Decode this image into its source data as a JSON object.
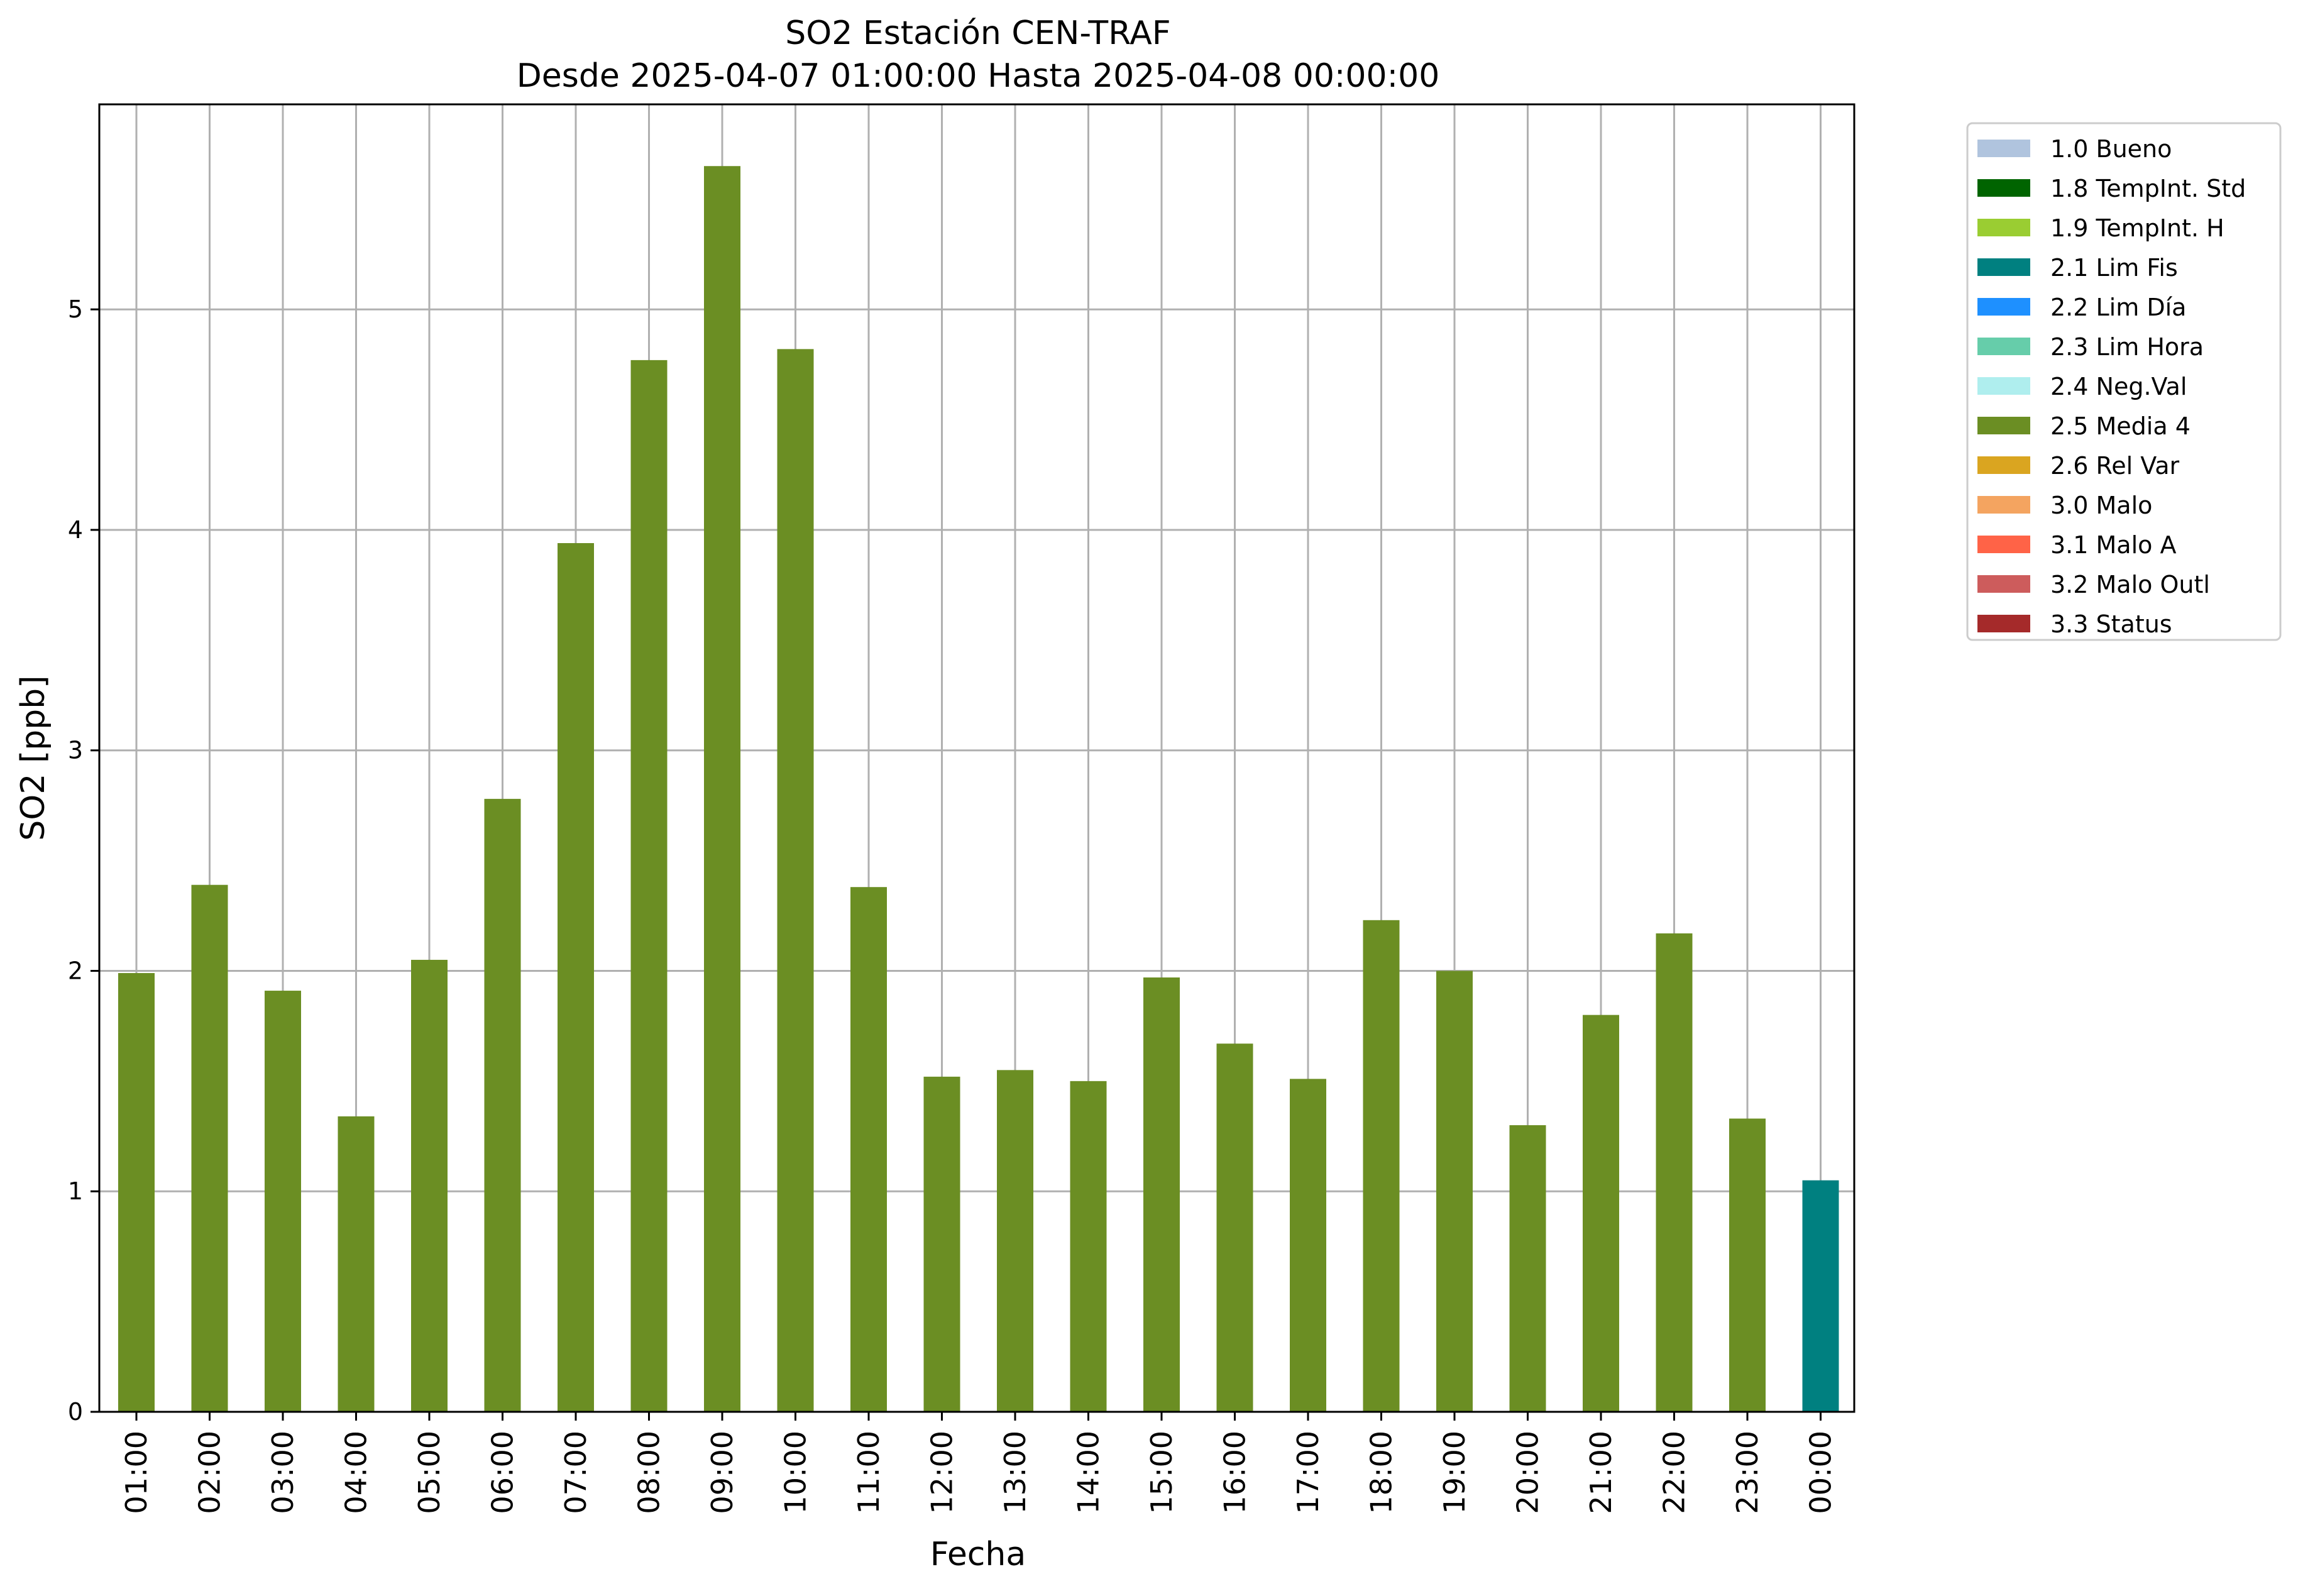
{
  "chart_data": {
    "type": "bar",
    "title": "SO2 Estación CEN-TRAF",
    "subtitle": "Desde 2025-04-07 01:00:00 Hasta 2025-04-08 00:00:00",
    "xlabel": "Fecha",
    "ylabel": "SO2 [ppb]",
    "ylim": [
      0,
      5.93
    ],
    "yticks": [
      0,
      1,
      2,
      3,
      4,
      5
    ],
    "grid": true,
    "legend_position": "outside-right-top",
    "categories": [
      "01:00",
      "02:00",
      "03:00",
      "04:00",
      "05:00",
      "06:00",
      "07:00",
      "08:00",
      "09:00",
      "10:00",
      "11:00",
      "12:00",
      "13:00",
      "14:00",
      "15:00",
      "16:00",
      "17:00",
      "18:00",
      "19:00",
      "20:00",
      "21:00",
      "22:00",
      "23:00",
      "00:00"
    ],
    "values": [
      1.99,
      2.39,
      1.91,
      1.34,
      2.05,
      2.78,
      3.94,
      4.77,
      5.65,
      4.82,
      2.38,
      1.52,
      1.55,
      1.5,
      1.97,
      1.67,
      1.51,
      2.23,
      2.0,
      1.3,
      1.8,
      2.17,
      1.33,
      1.05
    ],
    "flags": [
      "2.5 Media 4",
      "2.5 Media 4",
      "2.5 Media 4",
      "2.5 Media 4",
      "2.5 Media 4",
      "2.5 Media 4",
      "2.5 Media 4",
      "2.5 Media 4",
      "2.5 Media 4",
      "2.5 Media 4",
      "2.5 Media 4",
      "2.5 Media 4",
      "2.5 Media 4",
      "2.5 Media 4",
      "2.5 Media 4",
      "2.5 Media 4",
      "2.5 Media 4",
      "2.5 Media 4",
      "2.5 Media 4",
      "2.5 Media 4",
      "2.5 Media 4",
      "2.5 Media 4",
      "2.5 Media 4",
      "2.1 Lim Fis"
    ],
    "legend": [
      {
        "label": "1.0 Bueno",
        "color": "#b0c4de"
      },
      {
        "label": "1.8 TempInt. Std",
        "color": "#006400"
      },
      {
        "label": "1.9 TempInt. H",
        "color": "#9acd32"
      },
      {
        "label": "2.1 Lim Fis",
        "color": "#008080"
      },
      {
        "label": "2.2 Lim Día",
        "color": "#1e90ff"
      },
      {
        "label": "2.3 Lim Hora",
        "color": "#66cdaa"
      },
      {
        "label": "2.4 Neg.Val",
        "color": "#afeeee"
      },
      {
        "label": "2.5 Media 4",
        "color": "#6b8e23"
      },
      {
        "label": "2.6 Rel Var",
        "color": "#daa520"
      },
      {
        "label": "3.0 Malo",
        "color": "#f4a460"
      },
      {
        "label": "3.1 Malo A",
        "color": "#ff6347"
      },
      {
        "label": "3.2 Malo Outl",
        "color": "#cd5c5c"
      },
      {
        "label": "3.3 Status",
        "color": "#a52a2a"
      }
    ]
  }
}
